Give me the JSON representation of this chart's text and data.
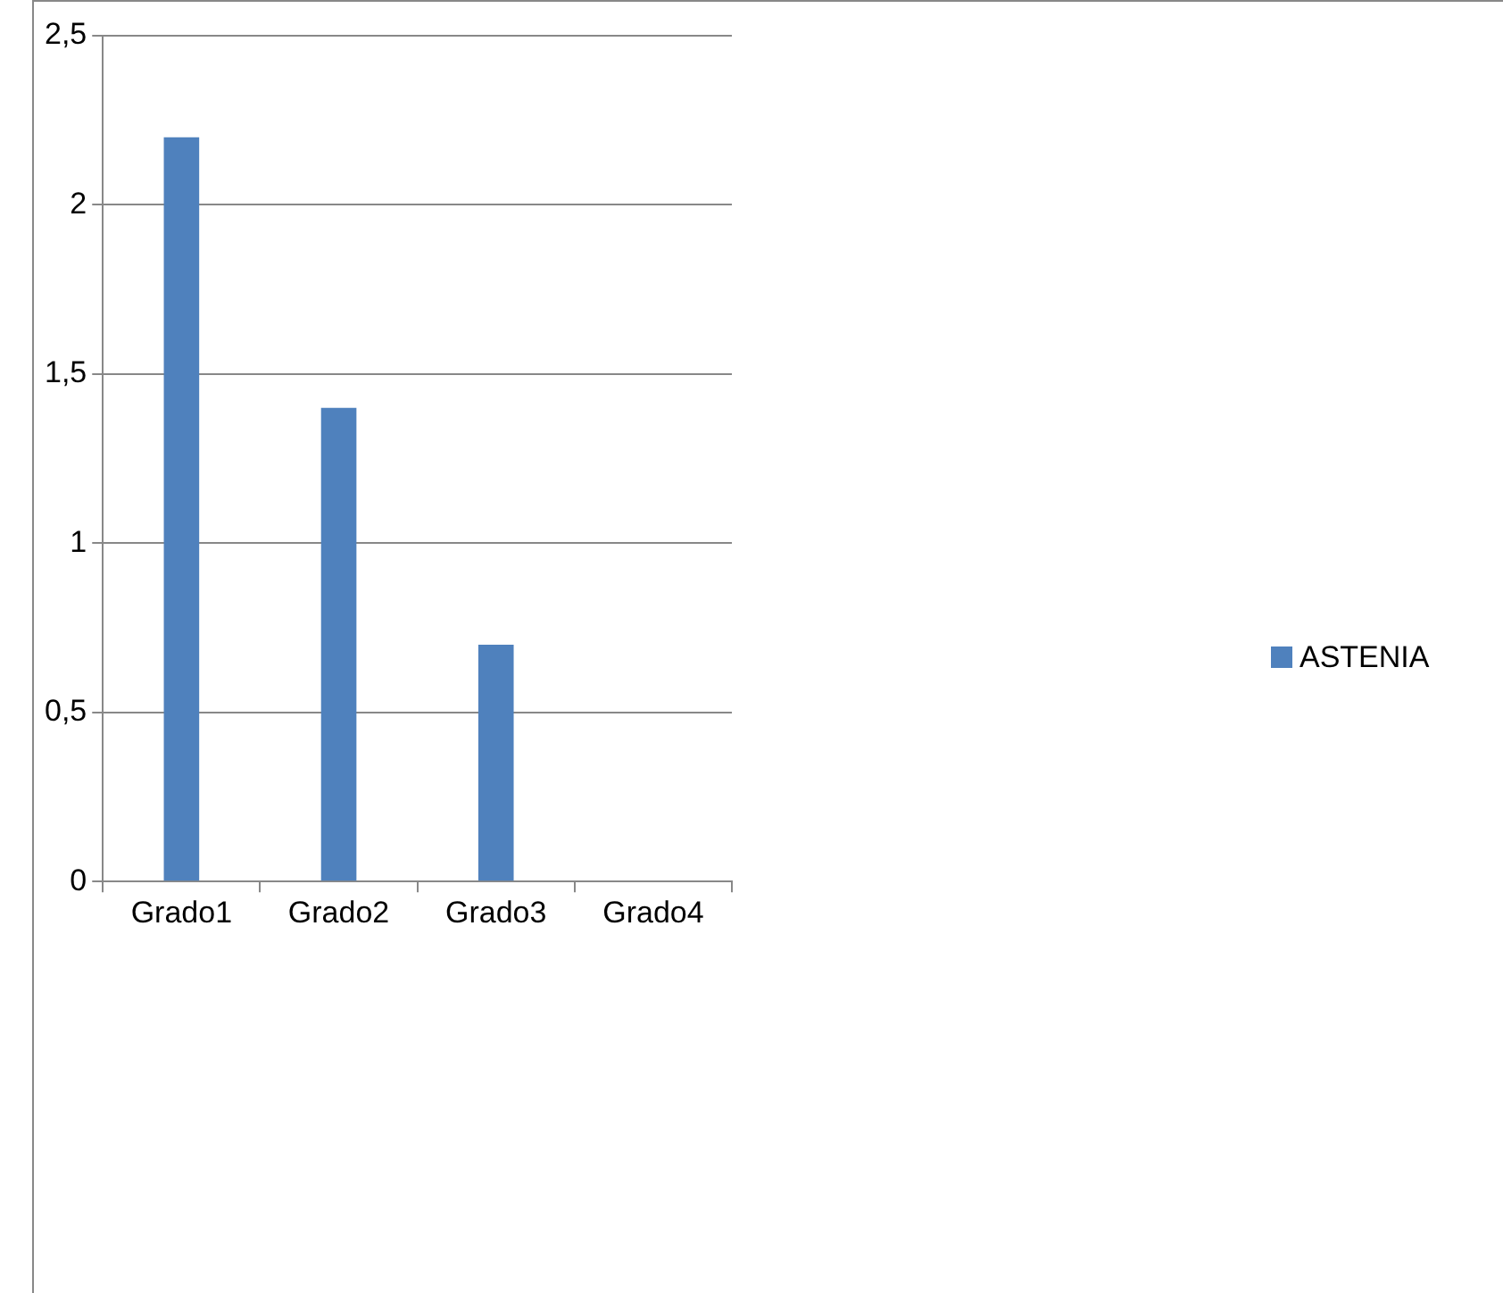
{
  "chart_data": {
    "type": "bar",
    "categories": [
      "Grado1",
      "Grado2",
      "Grado3",
      "Grado4"
    ],
    "series": [
      {
        "name": "ASTENIA",
        "color": "#4f81bd",
        "values": [
          2.2,
          1.4,
          0.7,
          0
        ]
      }
    ],
    "ylim": [
      0,
      2.5
    ],
    "yticks": [
      0,
      {
        "value": 0.5,
        "label": "0,5"
      },
      1,
      {
        "value": 1.5,
        "label": "1,5"
      },
      2,
      {
        "value": 2.5,
        "label": "2,5"
      }
    ],
    "grid": "y",
    "legend": "right"
  }
}
